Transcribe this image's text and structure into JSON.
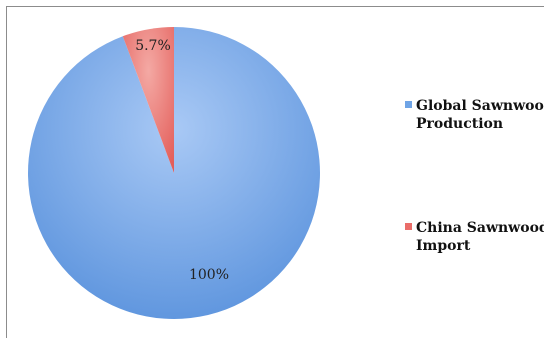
{
  "chart_data": {
    "type": "pie",
    "slices": [
      {
        "label": "Global Sawnwood Production",
        "value": 100,
        "data_label": "100%",
        "color": "#6fa4e6"
      },
      {
        "label": "China Sawnwood Import",
        "value": 5.7,
        "data_label": "5.7%",
        "color": "#ea6d69"
      }
    ],
    "legend": {
      "placement": "right",
      "entries": [
        {
          "line1": "Global Sawnwood",
          "line2": "Production",
          "color": "#6fa4e6"
        },
        {
          "line1": "China Sawnwood",
          "line2": "Import",
          "color": "#ea6d69"
        }
      ]
    }
  }
}
